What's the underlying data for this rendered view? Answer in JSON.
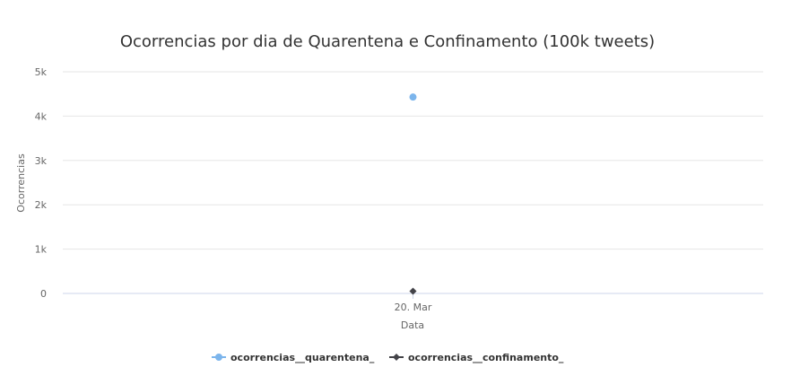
{
  "chart_data": {
    "type": "line",
    "title": "Ocorrencias por dia de Quarentena e Confinamento (100k tweets)",
    "xlabel": "Data",
    "ylabel": "Ocorrencias",
    "categories": [
      "20. Mar"
    ],
    "yticks": [
      "0",
      "1k",
      "2k",
      "3k",
      "4k",
      "5k"
    ],
    "ylim": [
      0,
      5000
    ],
    "grid": true,
    "legend_position": "bottom",
    "series": [
      {
        "name": "ocorrencias__quarentena_",
        "values": [
          4430
        ],
        "color": "#7cb5ec",
        "marker": "circle"
      },
      {
        "name": "ocorrencias__confinamento_",
        "values": [
          50
        ],
        "color": "#434348",
        "marker": "diamond"
      }
    ]
  }
}
